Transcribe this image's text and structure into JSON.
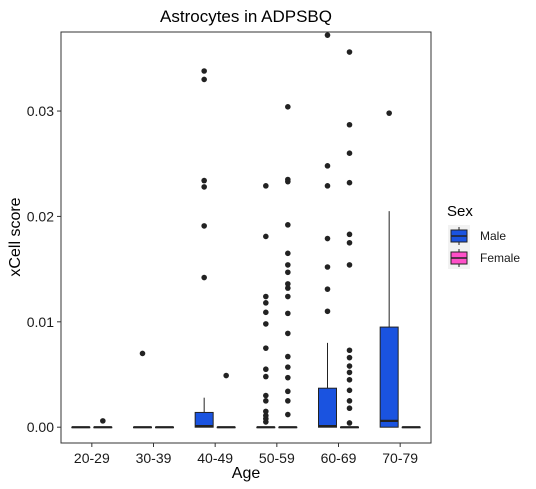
{
  "chart_data": {
    "type": "boxplot",
    "title": "Astrocytes in ADPSBQ",
    "xlabel": "Age",
    "ylabel": "xCell score",
    "categories": [
      "20-29",
      "30-39",
      "40-49",
      "50-59",
      "60-69",
      "70-79"
    ],
    "ylim": [
      -0.0015,
      0.0375
    ],
    "yticks": [
      0.0,
      0.01,
      0.02,
      0.03
    ],
    "ytick_labels": [
      "0.00",
      "0.01",
      "0.02",
      "0.03"
    ],
    "grid": false,
    "legend": {
      "title": "Sex",
      "position": "right",
      "entries": [
        {
          "label": "Male",
          "color": "#1a53e0"
        },
        {
          "label": "Female",
          "color": "#ff4fc8"
        }
      ]
    },
    "series": [
      {
        "name": "Male",
        "color": "#1a53e0",
        "boxes": [
          {
            "category": "20-29",
            "q1": 0,
            "median": 0,
            "q3": 0,
            "whisker_low": 0,
            "whisker_high": 0,
            "outliers": []
          },
          {
            "category": "30-39",
            "q1": 0,
            "median": 0,
            "q3": 0,
            "whisker_low": 0,
            "whisker_high": 0,
            "outliers": [
              0.007
            ]
          },
          {
            "category": "40-49",
            "q1": 0,
            "median": 0.0001,
            "q3": 0.0014,
            "whisker_low": 0,
            "whisker_high": 0.0028,
            "outliers": [
              0.0142,
              0.0191,
              0.0228,
              0.0234,
              0.033,
              0.0338
            ]
          },
          {
            "category": "50-59",
            "q1": 0,
            "median": 0,
            "q3": 0,
            "whisker_low": 0,
            "whisker_high": 0,
            "outliers": [
              0.0005,
              0.0008,
              0.0011,
              0.0015,
              0.0025,
              0.003,
              0.0048,
              0.0055,
              0.0075,
              0.0098,
              0.0109,
              0.0118,
              0.0124,
              0.0181,
              0.0229
            ]
          },
          {
            "category": "60-69",
            "q1": 0,
            "median": 0.0001,
            "q3": 0.0037,
            "whisker_low": 0,
            "whisker_high": 0.008,
            "outliers": [
              0.011,
              0.0131,
              0.0152,
              0.0179,
              0.0229,
              0.0248,
              0.0372
            ]
          },
          {
            "category": "70-79",
            "q1": 0,
            "median": 0.0006,
            "q3": 0.0095,
            "whisker_low": 0,
            "whisker_high": 0.0205,
            "outliers": [
              0.0298
            ]
          }
        ]
      },
      {
        "name": "Female",
        "color": "#ff4fc8",
        "boxes": [
          {
            "category": "20-29",
            "q1": 0,
            "median": 0,
            "q3": 0,
            "whisker_low": 0,
            "whisker_high": 0,
            "outliers": [
              0.0006
            ]
          },
          {
            "category": "30-39",
            "q1": 0,
            "median": 0,
            "q3": 0,
            "whisker_low": 0,
            "whisker_high": 0,
            "outliers": []
          },
          {
            "category": "40-49",
            "q1": 0,
            "median": 0,
            "q3": 0,
            "whisker_low": 0,
            "whisker_high": 0,
            "outliers": [
              0.0049
            ]
          },
          {
            "category": "50-59",
            "q1": 0,
            "median": 0,
            "q3": 0,
            "whisker_low": 0,
            "whisker_high": 0,
            "outliers": [
              0.0012,
              0.0025,
              0.0034,
              0.0047,
              0.0057,
              0.0067,
              0.0089,
              0.0108,
              0.0124,
              0.0132,
              0.0136,
              0.0147,
              0.0154,
              0.0165,
              0.0192,
              0.0233,
              0.0235,
              0.0304
            ]
          },
          {
            "category": "60-69",
            "q1": 0,
            "median": 0,
            "q3": 0,
            "whisker_low": 0,
            "whisker_high": 0,
            "outliers": [
              0.0004,
              0.0018,
              0.0025,
              0.0035,
              0.0045,
              0.0052,
              0.0058,
              0.0066,
              0.0073,
              0.0154,
              0.0175,
              0.0183,
              0.0232,
              0.026,
              0.0287,
              0.0356
            ]
          },
          {
            "category": "70-79",
            "q1": 0,
            "median": 0,
            "q3": 0,
            "whisker_low": 0,
            "whisker_high": 0,
            "outliers": []
          }
        ]
      }
    ]
  }
}
